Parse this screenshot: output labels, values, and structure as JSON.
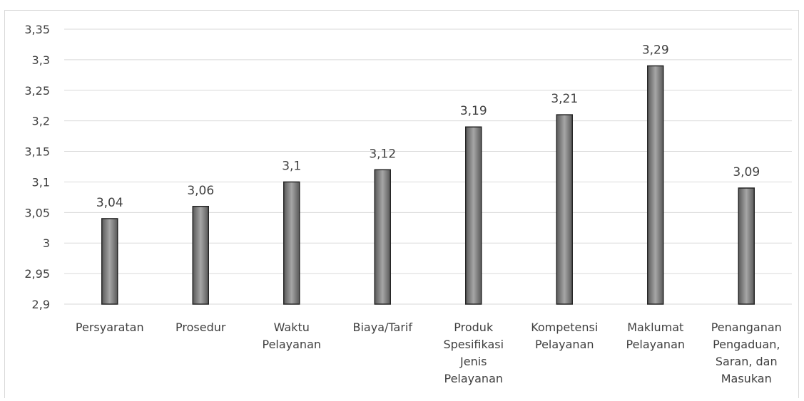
{
  "chart_data": {
    "type": "bar",
    "title": "",
    "xlabel": "",
    "ylabel": "",
    "categories": [
      "Persyaratan",
      "Prosedur",
      "Waktu Pelayanan",
      "Biaya/Tarif",
      "Produk Spesifikasi Jenis Pelayanan",
      "Kompetensi Pelayanan",
      "Maklumat Pelayanan",
      "Penanganan Pengaduan, Saran, dan Masukan"
    ],
    "category_lines": [
      [
        "Persyaratan"
      ],
      [
        "Prosedur"
      ],
      [
        "Waktu",
        "Pelayanan"
      ],
      [
        "Biaya/Tarif"
      ],
      [
        "Produk",
        "Spesifikasi",
        "Jenis",
        "Pelayanan"
      ],
      [
        "Kompetensi",
        "Pelayanan"
      ],
      [
        "Maklumat",
        "Pelayanan"
      ],
      [
        "Penanganan",
        "Pengaduan,",
        "Saran, dan",
        "Masukan"
      ]
    ],
    "values": [
      3.04,
      3.06,
      3.1,
      3.12,
      3.19,
      3.21,
      3.29,
      3.09
    ],
    "data_labels": [
      "3,04",
      "3,06",
      "3,1",
      "3,12",
      "3,19",
      "3,21",
      "3,29",
      "3,09"
    ],
    "ylim": [
      2.9,
      3.35
    ],
    "yticks": [
      2.9,
      2.95,
      3,
      3.05,
      3.1,
      3.15,
      3.2,
      3.25,
      3.3,
      3.35
    ],
    "ytick_labels": [
      "2,9",
      "2,95",
      "3",
      "3,05",
      "3,1",
      "3,15",
      "3,2",
      "3,25",
      "3,3",
      "3,35"
    ],
    "grid": true,
    "legend": "none",
    "colors": {
      "bar_fill_light": "#a6a6a6",
      "bar_fill_dark": "#595959",
      "bar_stroke": "#262626",
      "gridline": "#d9d9d9",
      "text": "#404040"
    }
  }
}
